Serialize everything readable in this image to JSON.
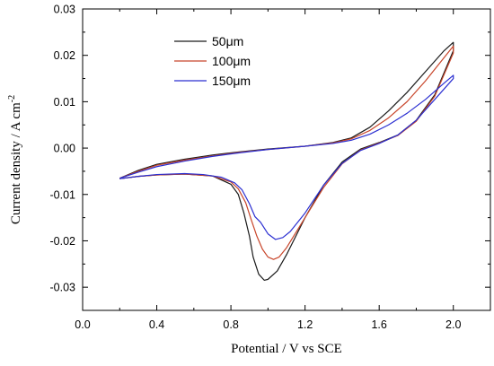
{
  "chart_data": {
    "type": "line",
    "title": "",
    "xlabel": "Potential / V vs SCE",
    "ylabel": "Current density / A cm",
    "ylabel_superscript": "-2",
    "xlim": [
      0.0,
      2.2
    ],
    "ylim": [
      -0.035,
      0.03
    ],
    "xticks": [
      "0.0",
      "0.4",
      "0.8",
      "1.2",
      "1.6",
      "2.0"
    ],
    "yticks": [
      "0.03",
      "0.02",
      "0.01",
      "0.00",
      "-0.01",
      "-0.02",
      "-0.03"
    ],
    "grid": false,
    "legend_position": "top-center",
    "series": [
      {
        "name": "50μm",
        "color": "#1a1a1a",
        "points": [
          [
            0.2,
            -0.0065
          ],
          [
            0.3,
            -0.0048
          ],
          [
            0.4,
            -0.0035
          ],
          [
            0.55,
            -0.0024
          ],
          [
            0.7,
            -0.0015
          ],
          [
            0.85,
            -0.0008
          ],
          [
            1.0,
            -0.0002
          ],
          [
            1.2,
            0.0004
          ],
          [
            1.35,
            0.0012
          ],
          [
            1.45,
            0.0022
          ],
          [
            1.55,
            0.0045
          ],
          [
            1.65,
            0.008
          ],
          [
            1.75,
            0.012
          ],
          [
            1.85,
            0.0165
          ],
          [
            1.95,
            0.021
          ],
          [
            2.0,
            0.0228
          ],
          [
            2.0,
            0.021
          ],
          [
            1.9,
            0.0115
          ],
          [
            1.8,
            0.006
          ],
          [
            1.7,
            0.0028
          ],
          [
            1.6,
            0.0012
          ],
          [
            1.5,
            -0.0002
          ],
          [
            1.4,
            -0.003
          ],
          [
            1.3,
            -0.008
          ],
          [
            1.2,
            -0.015
          ],
          [
            1.1,
            -0.023
          ],
          [
            1.05,
            -0.0265
          ],
          [
            1.0,
            -0.0283
          ],
          [
            0.98,
            -0.0285
          ],
          [
            0.95,
            -0.0272
          ],
          [
            0.92,
            -0.0235
          ],
          [
            0.9,
            -0.019
          ],
          [
            0.87,
            -0.014
          ],
          [
            0.84,
            -0.01
          ],
          [
            0.8,
            -0.0078
          ],
          [
            0.7,
            -0.006
          ],
          [
            0.55,
            -0.0056
          ],
          [
            0.4,
            -0.0058
          ],
          [
            0.3,
            -0.0061
          ],
          [
            0.2,
            -0.0066
          ]
        ]
      },
      {
        "name": "100μm",
        "color": "#c8452a",
        "points": [
          [
            0.2,
            -0.0065
          ],
          [
            0.3,
            -0.005
          ],
          [
            0.4,
            -0.0037
          ],
          [
            0.55,
            -0.0026
          ],
          [
            0.7,
            -0.0017
          ],
          [
            0.85,
            -0.0009
          ],
          [
            1.0,
            -0.0003
          ],
          [
            1.2,
            0.0004
          ],
          [
            1.35,
            0.0011
          ],
          [
            1.45,
            0.002
          ],
          [
            1.55,
            0.0038
          ],
          [
            1.65,
            0.0065
          ],
          [
            1.75,
            0.01
          ],
          [
            1.85,
            0.0145
          ],
          [
            1.95,
            0.0195
          ],
          [
            2.0,
            0.022
          ],
          [
            2.0,
            0.0205
          ],
          [
            1.9,
            0.0112
          ],
          [
            1.8,
            0.0058
          ],
          [
            1.7,
            0.0027
          ],
          [
            1.6,
            0.0011
          ],
          [
            1.5,
            -0.0004
          ],
          [
            1.4,
            -0.0034
          ],
          [
            1.3,
            -0.0085
          ],
          [
            1.2,
            -0.015
          ],
          [
            1.1,
            -0.0215
          ],
          [
            1.06,
            -0.0235
          ],
          [
            1.03,
            -0.024
          ],
          [
            1.0,
            -0.0235
          ],
          [
            0.97,
            -0.0218
          ],
          [
            0.94,
            -0.019
          ],
          [
            0.91,
            -0.0155
          ],
          [
            0.88,
            -0.0118
          ],
          [
            0.84,
            -0.0088
          ],
          [
            0.8,
            -0.0073
          ],
          [
            0.7,
            -0.006
          ],
          [
            0.55,
            -0.0056
          ],
          [
            0.4,
            -0.0058
          ],
          [
            0.3,
            -0.0061
          ],
          [
            0.2,
            -0.0066
          ]
        ]
      },
      {
        "name": "150μm",
        "color": "#2b2fd1",
        "points": [
          [
            0.2,
            -0.0065
          ],
          [
            0.3,
            -0.0052
          ],
          [
            0.4,
            -0.004
          ],
          [
            0.55,
            -0.0028
          ],
          [
            0.7,
            -0.0018
          ],
          [
            0.85,
            -0.001
          ],
          [
            1.0,
            -0.0003
          ],
          [
            1.2,
            0.0004
          ],
          [
            1.35,
            0.001
          ],
          [
            1.45,
            0.0017
          ],
          [
            1.55,
            0.003
          ],
          [
            1.65,
            0.005
          ],
          [
            1.75,
            0.0075
          ],
          [
            1.85,
            0.0105
          ],
          [
            1.95,
            0.014
          ],
          [
            2.0,
            0.0157
          ],
          [
            2.0,
            0.015
          ],
          [
            1.9,
            0.0105
          ],
          [
            1.8,
            0.006
          ],
          [
            1.7,
            0.0028
          ],
          [
            1.6,
            0.001
          ],
          [
            1.5,
            -0.0005
          ],
          [
            1.4,
            -0.0033
          ],
          [
            1.3,
            -0.008
          ],
          [
            1.2,
            -0.014
          ],
          [
            1.12,
            -0.018
          ],
          [
            1.08,
            -0.0193
          ],
          [
            1.04,
            -0.0197
          ],
          [
            1.0,
            -0.0185
          ],
          [
            0.96,
            -0.016
          ],
          [
            0.93,
            -0.0148
          ],
          [
            0.9,
            -0.012
          ],
          [
            0.86,
            -0.009
          ],
          [
            0.82,
            -0.0075
          ],
          [
            0.75,
            -0.0063
          ],
          [
            0.65,
            -0.0057
          ],
          [
            0.55,
            -0.0055
          ],
          [
            0.4,
            -0.0057
          ],
          [
            0.3,
            -0.0061
          ],
          [
            0.2,
            -0.0066
          ]
        ]
      }
    ]
  }
}
